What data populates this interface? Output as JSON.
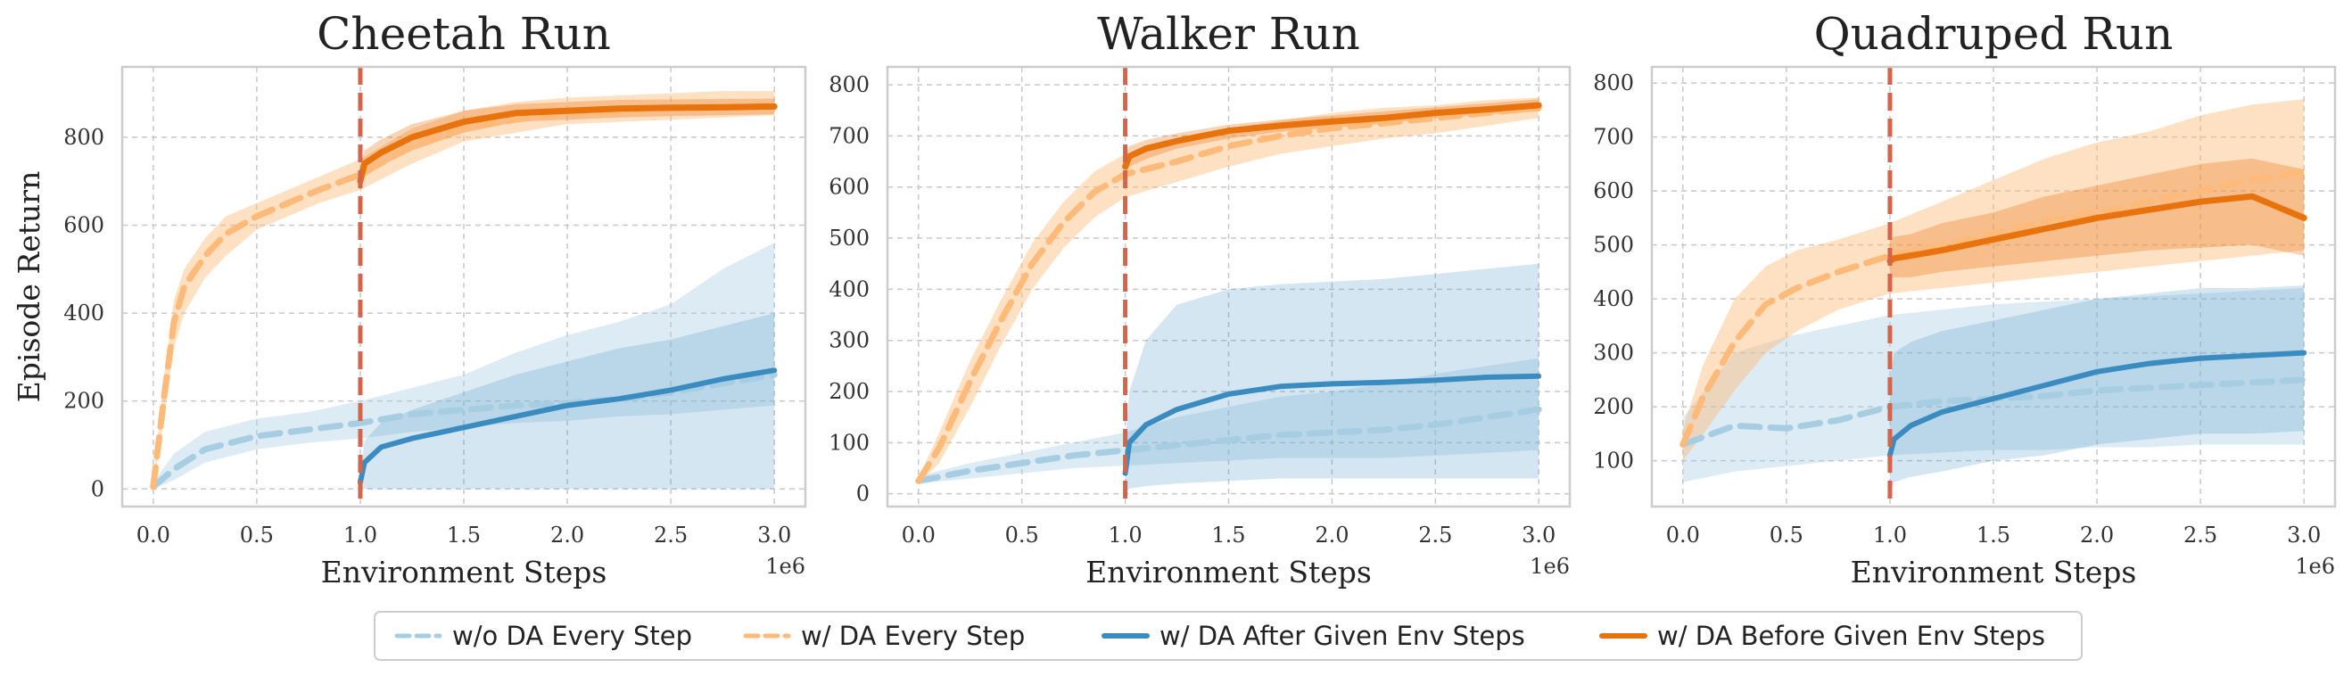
{
  "colors": {
    "wo_da": "#a6cde2",
    "w_da_every": "#fdba79",
    "w_da_after": "#3a8bbf",
    "w_da_before": "#e8720c",
    "divider": "#d4644a"
  },
  "legend": {
    "entries": [
      {
        "label": "w/o DA Every Step",
        "color": "#a6cde2",
        "dashed": true,
        "width": 5
      },
      {
        "label": "w/ DA Every Step",
        "color": "#fdba79",
        "dashed": true,
        "width": 5
      },
      {
        "label": "w/ DA After Given Env Steps",
        "color": "#3a8bbf",
        "dashed": false,
        "width": 6
      },
      {
        "label": "w/ DA Before Given Env Steps",
        "color": "#e8720c",
        "dashed": false,
        "width": 6
      }
    ]
  },
  "chart_data": [
    {
      "type": "line",
      "title": "Cheetah Run",
      "xlabel": "Environment Steps",
      "ylabel": "Episode Return",
      "x_multiplier_label": "1e6",
      "xlim": [
        -0.15,
        3.15
      ],
      "ylim": [
        -40,
        960
      ],
      "xticks": [
        0.0,
        0.5,
        1.0,
        1.5,
        2.0,
        2.5,
        3.0
      ],
      "xtick_labels": [
        "0.0",
        "0.5",
        "1.0",
        "1.5",
        "2.0",
        "2.5",
        "3.0"
      ],
      "yticks": [
        0,
        200,
        400,
        600,
        800
      ],
      "grid": true,
      "vline_x": 1.0,
      "series": [
        {
          "name": "w/o DA Every Step",
          "x": [
            0,
            0.1,
            0.25,
            0.5,
            0.75,
            1.0,
            1.25,
            1.5,
            1.75,
            2.0,
            2.25,
            2.5,
            2.75,
            3.0
          ],
          "y": [
            5,
            45,
            90,
            120,
            135,
            150,
            170,
            180,
            190,
            195,
            205,
            220,
            240,
            260
          ],
          "low": [
            0,
            20,
            60,
            90,
            105,
            115,
            130,
            140,
            150,
            155,
            165,
            170,
            180,
            190
          ],
          "high": [
            15,
            80,
            130,
            160,
            175,
            200,
            230,
            260,
            310,
            350,
            380,
            420,
            500,
            560
          ]
        },
        {
          "name": "w/ DA Every Step",
          "x": [
            0,
            0.05,
            0.1,
            0.15,
            0.25,
            0.35,
            0.5,
            0.65,
            0.8,
            1.0,
            1.25,
            1.5,
            1.75,
            2.0,
            2.25,
            2.5,
            2.75,
            3.0
          ],
          "y": [
            5,
            200,
            380,
            460,
            530,
            580,
            620,
            650,
            680,
            715,
            780,
            820,
            840,
            855,
            860,
            865,
            870,
            872
          ],
          "low": [
            0,
            150,
            320,
            400,
            480,
            530,
            590,
            620,
            650,
            680,
            740,
            790,
            810,
            830,
            835,
            840,
            845,
            850
          ],
          "high": [
            15,
            250,
            430,
            500,
            570,
            620,
            650,
            680,
            710,
            750,
            820,
            860,
            880,
            890,
            895,
            900,
            905,
            905
          ]
        },
        {
          "name": "w/ DA After Given Env Steps",
          "x": [
            1.0,
            1.02,
            1.1,
            1.25,
            1.5,
            1.75,
            2.0,
            2.25,
            2.5,
            2.75,
            3.0
          ],
          "y": [
            15,
            60,
            95,
            115,
            140,
            165,
            190,
            205,
            225,
            250,
            270
          ],
          "low": [
            0,
            0,
            0,
            0,
            0,
            0,
            0,
            0,
            0,
            0,
            0
          ],
          "high": [
            30,
            110,
            150,
            180,
            220,
            260,
            290,
            320,
            340,
            370,
            400
          ]
        },
        {
          "name": "w/ DA Before Given Env Steps",
          "x": [
            1.0,
            1.02,
            1.1,
            1.25,
            1.5,
            1.75,
            2.0,
            2.25,
            2.5,
            2.75,
            3.0
          ],
          "y": [
            700,
            740,
            765,
            800,
            835,
            855,
            860,
            865,
            867,
            868,
            870
          ],
          "low": [
            670,
            710,
            735,
            770,
            810,
            835,
            840,
            845,
            848,
            850,
            852
          ],
          "high": [
            730,
            770,
            795,
            830,
            860,
            875,
            880,
            885,
            886,
            887,
            888
          ]
        }
      ]
    },
    {
      "type": "line",
      "title": "Walker Run",
      "xlabel": "Environment Steps",
      "ylabel": "",
      "x_multiplier_label": "1e6",
      "xlim": [
        -0.15,
        3.15
      ],
      "ylim": [
        -25,
        835
      ],
      "xticks": [
        0.0,
        0.5,
        1.0,
        1.5,
        2.0,
        2.5,
        3.0
      ],
      "xtick_labels": [
        "0.0",
        "0.5",
        "1.0",
        "1.5",
        "2.0",
        "2.5",
        "3.0"
      ],
      "yticks": [
        0,
        100,
        200,
        300,
        400,
        500,
        600,
        700,
        800
      ],
      "grid": true,
      "vline_x": 1.0,
      "series": [
        {
          "name": "w/o DA Every Step",
          "x": [
            0,
            0.25,
            0.5,
            0.75,
            1.0,
            1.25,
            1.5,
            1.75,
            2.0,
            2.25,
            2.5,
            2.75,
            3.0
          ],
          "y": [
            25,
            45,
            60,
            75,
            85,
            95,
            105,
            115,
            120,
            125,
            135,
            150,
            165
          ],
          "low": [
            20,
            30,
            40,
            50,
            55,
            60,
            65,
            70,
            70,
            70,
            75,
            80,
            85
          ],
          "high": [
            35,
            60,
            80,
            100,
            120,
            150,
            170,
            190,
            200,
            215,
            235,
            250,
            265
          ]
        },
        {
          "name": "w/ DA Every Step",
          "x": [
            0,
            0.1,
            0.25,
            0.4,
            0.55,
            0.7,
            0.85,
            1.0,
            1.25,
            1.5,
            1.75,
            2.0,
            2.25,
            2.5,
            2.75,
            3.0
          ],
          "y": [
            25,
            90,
            220,
            340,
            450,
            530,
            590,
            625,
            650,
            680,
            700,
            715,
            725,
            735,
            745,
            755
          ],
          "low": [
            20,
            60,
            170,
            290,
            400,
            480,
            540,
            580,
            610,
            640,
            665,
            680,
            695,
            705,
            720,
            735
          ],
          "high": [
            30,
            120,
            260,
            380,
            490,
            570,
            630,
            665,
            690,
            715,
            730,
            745,
            755,
            760,
            770,
            775
          ]
        },
        {
          "name": "w/ DA After Given Env Steps",
          "x": [
            1.0,
            1.02,
            1.1,
            1.25,
            1.5,
            1.75,
            2.0,
            2.25,
            2.5,
            2.75,
            3.0
          ],
          "y": [
            40,
            100,
            135,
            165,
            195,
            210,
            215,
            218,
            222,
            228,
            230
          ],
          "low": [
            0,
            10,
            15,
            20,
            25,
            30,
            30,
            30,
            30,
            30,
            30
          ],
          "high": [
            100,
            200,
            300,
            370,
            400,
            410,
            415,
            420,
            430,
            440,
            450
          ]
        },
        {
          "name": "w/ DA Before Given Env Steps",
          "x": [
            1.0,
            1.02,
            1.1,
            1.25,
            1.5,
            1.75,
            2.0,
            2.25,
            2.5,
            2.75,
            3.0
          ],
          "y": [
            640,
            660,
            675,
            690,
            710,
            720,
            728,
            735,
            745,
            752,
            760
          ],
          "low": [
            620,
            640,
            655,
            675,
            695,
            708,
            716,
            724,
            735,
            742,
            748
          ],
          "high": [
            665,
            680,
            692,
            705,
            722,
            732,
            740,
            748,
            756,
            764,
            772
          ]
        }
      ]
    },
    {
      "type": "line",
      "title": "Quadruped Run",
      "xlabel": "Environment Steps",
      "ylabel": "",
      "x_multiplier_label": "1e6",
      "xlim": [
        -0.15,
        3.15
      ],
      "ylim": [
        15,
        830
      ],
      "xticks": [
        0.0,
        0.5,
        1.0,
        1.5,
        2.0,
        2.5,
        3.0
      ],
      "xtick_labels": [
        "0.0",
        "0.5",
        "1.0",
        "1.5",
        "2.0",
        "2.5",
        "3.0"
      ],
      "yticks": [
        100,
        200,
        300,
        400,
        500,
        600,
        700,
        800
      ],
      "grid": true,
      "vline_x": 1.0,
      "series": [
        {
          "name": "w/o DA Every Step",
          "x": [
            0,
            0.25,
            0.5,
            0.75,
            1.0,
            1.25,
            1.5,
            1.75,
            2.0,
            2.25,
            2.5,
            2.75,
            3.0
          ],
          "y": [
            130,
            165,
            160,
            175,
            200,
            210,
            215,
            220,
            230,
            235,
            240,
            245,
            250
          ],
          "low": [
            60,
            80,
            90,
            100,
            110,
            115,
            120,
            120,
            125,
            125,
            130,
            130,
            130
          ],
          "high": [
            180,
            300,
            330,
            350,
            370,
            380,
            390,
            395,
            400,
            405,
            410,
            415,
            420
          ]
        },
        {
          "name": "w/ DA Every Step",
          "x": [
            0,
            0.1,
            0.25,
            0.4,
            0.55,
            0.75,
            1.0,
            1.25,
            1.5,
            1.75,
            2.0,
            2.25,
            2.5,
            2.75,
            3.0
          ],
          "y": [
            130,
            220,
            320,
            390,
            420,
            450,
            480,
            500,
            520,
            545,
            560,
            580,
            600,
            620,
            635
          ],
          "low": [
            100,
            150,
            230,
            300,
            340,
            380,
            410,
            420,
            430,
            440,
            450,
            460,
            470,
            480,
            490
          ],
          "high": [
            160,
            280,
            400,
            460,
            490,
            510,
            540,
            580,
            620,
            660,
            690,
            710,
            740,
            760,
            770
          ]
        },
        {
          "name": "w/ DA After Given Env Steps",
          "x": [
            1.0,
            1.02,
            1.1,
            1.25,
            1.5,
            1.75,
            2.0,
            2.25,
            2.5,
            2.75,
            3.0
          ],
          "y": [
            110,
            140,
            165,
            190,
            215,
            240,
            265,
            280,
            290,
            295,
            300
          ],
          "low": [
            40,
            60,
            70,
            80,
            100,
            110,
            130,
            140,
            150,
            150,
            155
          ],
          "high": [
            250,
            300,
            320,
            340,
            360,
            380,
            400,
            410,
            420,
            420,
            425
          ]
        },
        {
          "name": "w/ DA Before Given Env Steps",
          "x": [
            1.0,
            1.02,
            1.1,
            1.25,
            1.5,
            1.75,
            2.0,
            2.25,
            2.5,
            2.75,
            3.0
          ],
          "y": [
            470,
            475,
            480,
            490,
            510,
            530,
            550,
            565,
            580,
            590,
            550
          ],
          "low": [
            440,
            440,
            440,
            450,
            460,
            470,
            480,
            490,
            495,
            500,
            480
          ],
          "high": [
            510,
            515,
            520,
            540,
            560,
            590,
            610,
            630,
            650,
            660,
            640
          ]
        }
      ]
    }
  ]
}
